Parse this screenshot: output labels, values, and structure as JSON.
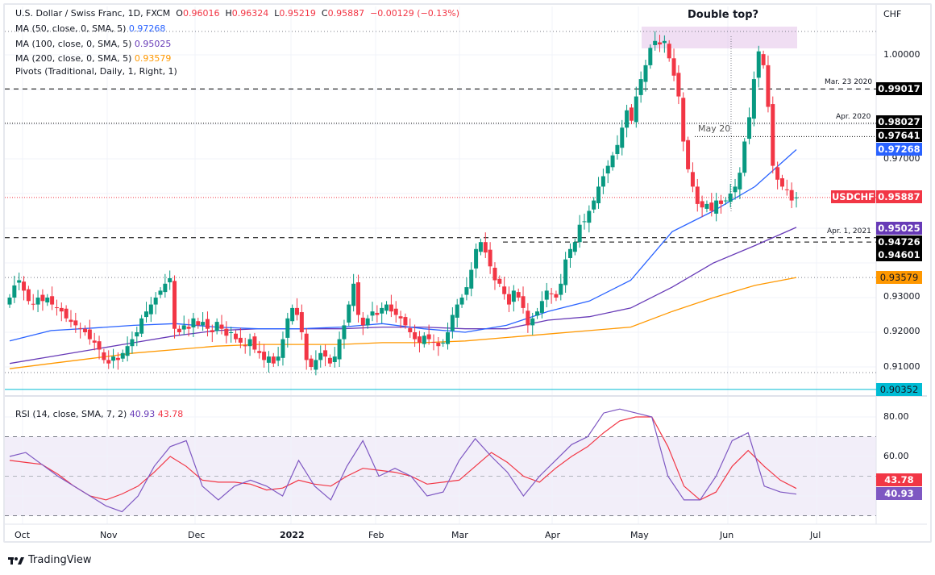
{
  "header": {
    "symbol": "U.S. Dollar / Swiss Franc, 1D, FXCM",
    "o_label": "O",
    "o": "0.96016",
    "h_label": "H",
    "h": "0.96324",
    "l_label": "L",
    "l": "0.95219",
    "c_label": "C",
    "c": "0.95887",
    "change": "−0.00129 (−0.13%)"
  },
  "indicators": {
    "ma50": {
      "label": "MA (50, close, 0, SMA, 5)",
      "value": "0.97268"
    },
    "ma100": {
      "label": "MA (100, close, 0, SMA, 5)",
      "value": "0.95025"
    },
    "ma200": {
      "label": "MA (200, close, 0, SMA, 5)",
      "value": "0.93579"
    },
    "pivots": {
      "label": "Pivots (Traditional, Daily, 1, Right, 1)"
    },
    "rsi": {
      "label": "RSI (14, close, SMA, 7, 2)",
      "value": "40.93",
      "sma_value": "43.78"
    }
  },
  "annotations": {
    "double_top": "Double top?",
    "may20": "May 20",
    "mar23": "Mar. 23 2020",
    "apr2020": "Apr. 2020",
    "apr2021": "Apr. 1, 2021"
  },
  "price_axis": {
    "currency": "CHF",
    "ticks": [
      "1.00000",
      "0.97000",
      "0.93000",
      "0.92000",
      "0.91000"
    ]
  },
  "price_tags": {
    "symbol": "USDCHF",
    "last": "0.95887",
    "l1": "0.99017",
    "l2": "0.98027",
    "l3": "0.97641",
    "ma50": "0.97268",
    "ma100": "0.95025",
    "l4": "0.94726",
    "l5": "0.94601",
    "ma200": "0.93579",
    "l6": "0.90352"
  },
  "rsi_axis": {
    "ticks": [
      "80.00",
      "60.00"
    ]
  },
  "x_axis": {
    "ticks": [
      "Oct",
      "Nov",
      "Dec",
      "2022",
      "Feb",
      "Mar",
      "Apr",
      "May",
      "Jun",
      "Jul"
    ]
  },
  "brand": {
    "name": "TradingView"
  },
  "colors": {
    "up": "#089981",
    "down": "#f23645",
    "ma50": "#2962ff",
    "ma100": "#673ab7",
    "ma200": "#ff9800",
    "rsi": "#7e57c2",
    "rsi_ma": "#f23645"
  },
  "chart_data": [
    {
      "type": "candlestick",
      "title": "U.S. Dollar / Swiss Franc, 1D, FXCM",
      "ylim": [
        0.9,
        1.01
      ],
      "closes": [
        0.93,
        0.9335,
        0.935,
        0.932,
        0.929,
        0.928,
        0.93,
        0.929,
        0.93,
        0.928,
        0.927,
        0.926,
        0.924,
        0.923,
        0.922,
        0.921,
        0.92,
        0.918,
        0.917,
        0.915,
        0.912,
        0.911,
        0.913,
        0.912,
        0.914,
        0.916,
        0.918,
        0.92,
        0.924,
        0.926,
        0.928,
        0.93,
        0.932,
        0.934,
        0.9356,
        0.921,
        0.92,
        0.922,
        0.921,
        0.924,
        0.922,
        0.923,
        0.921,
        0.92,
        0.923,
        0.921,
        0.919,
        0.92,
        0.918,
        0.917,
        0.916,
        0.918,
        0.915,
        0.914,
        0.912,
        0.913,
        0.911,
        0.913,
        0.918,
        0.924,
        0.927,
        0.925,
        0.92,
        0.912,
        0.91,
        0.912,
        0.914,
        0.913,
        0.911,
        0.913,
        0.918,
        0.922,
        0.928,
        0.934,
        0.925,
        0.922,
        0.924,
        0.926,
        0.925,
        0.927,
        0.928,
        0.926,
        0.925,
        0.924,
        0.922,
        0.92,
        0.918,
        0.917,
        0.919,
        0.918,
        0.917,
        0.916,
        0.917,
        0.92,
        0.925,
        0.928,
        0.93,
        0.933,
        0.938,
        0.944,
        0.946,
        0.943,
        0.939,
        0.935,
        0.934,
        0.931,
        0.928,
        0.932,
        0.93,
        0.927,
        0.922,
        0.924,
        0.926,
        0.929,
        0.932,
        0.931,
        0.93,
        0.934,
        0.941,
        0.944,
        0.946,
        0.951,
        0.952,
        0.955,
        0.958,
        0.962,
        0.965,
        0.968,
        0.971,
        0.974,
        0.979,
        0.984,
        0.981,
        0.988,
        0.993,
        0.997,
        1.002,
        1.004,
        1.003,
        1.004,
        0.999,
        0.994,
        0.988,
        0.975,
        0.967,
        0.962,
        0.957,
        0.956,
        0.957,
        0.955,
        0.958,
        0.957,
        0.958,
        0.96,
        0.962,
        0.966,
        0.975,
        0.982,
        0.993,
        1.001,
        0.997,
        0.985,
        0.968,
        0.964,
        0.962,
        0.961,
        0.958,
        0.95887
      ],
      "ma50": [
        0.9175,
        0.9205,
        0.9212,
        0.922,
        0.9225,
        0.9215,
        0.921,
        0.921,
        0.9215,
        0.9225,
        0.921,
        0.92,
        0.922,
        0.926,
        0.929,
        0.935,
        0.949,
        0.955,
        0.962,
        0.97268
      ],
      "ma100": [
        0.911,
        0.913,
        0.915,
        0.917,
        0.919,
        0.9205,
        0.921,
        0.921,
        0.921,
        0.9215,
        0.9215,
        0.921,
        0.921,
        0.9235,
        0.9245,
        0.927,
        0.933,
        0.94,
        0.945,
        0.95025
      ],
      "ma200": [
        0.9095,
        0.911,
        0.9125,
        0.914,
        0.915,
        0.916,
        0.9165,
        0.9165,
        0.9165,
        0.917,
        0.917,
        0.9175,
        0.9185,
        0.9195,
        0.9205,
        0.9215,
        0.926,
        0.93,
        0.9335,
        0.93579
      ],
      "levels": [
        0.99017,
        0.98027,
        0.97641,
        0.94726,
        0.94601,
        0.90352
      ],
      "x_ticks": [
        "Oct",
        "Nov",
        "Dec",
        "2022",
        "Feb",
        "Mar",
        "Apr",
        "May",
        "Jun",
        "Jul"
      ]
    },
    {
      "type": "line",
      "title": "RSI (14, close, SMA, 7, 2)",
      "ylim": [
        25,
        90
      ],
      "bands": [
        30,
        50,
        70
      ],
      "series": [
        {
          "name": "RSI",
          "values": [
            60,
            62,
            56,
            50,
            45,
            40,
            35,
            32,
            40,
            55,
            65,
            68,
            45,
            38,
            45,
            48,
            45,
            40,
            58,
            45,
            38,
            55,
            68,
            50,
            54,
            50,
            40,
            42,
            58,
            69,
            60,
            52,
            40,
            50,
            58,
            66,
            70,
            82,
            84,
            82,
            80,
            50,
            38,
            38,
            50,
            68,
            72,
            45,
            42,
            40.93
          ]
        },
        {
          "name": "RSI-based MA",
          "values": [
            58,
            57,
            56,
            51,
            45,
            40,
            38,
            41,
            45,
            52,
            60,
            55,
            48,
            47,
            47,
            46,
            43,
            44,
            48,
            46,
            45,
            50,
            54,
            53,
            52,
            50,
            46,
            47,
            48,
            55,
            62,
            57,
            50,
            47,
            54,
            60,
            65,
            72,
            78,
            80,
            80,
            65,
            45,
            38,
            42,
            55,
            63,
            55,
            48,
            43.78
          ]
        }
      ]
    }
  ]
}
